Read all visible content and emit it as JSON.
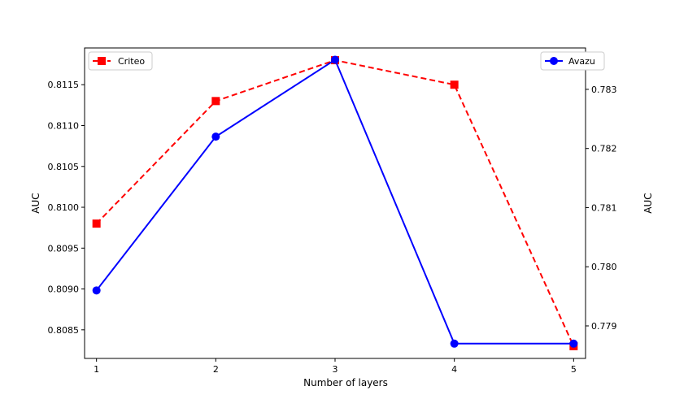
{
  "chart_data": {
    "type": "line",
    "xlabel": "Number of layers",
    "x": [
      1,
      2,
      3,
      4,
      5
    ],
    "x_ticks": [
      "1",
      "2",
      "3",
      "4",
      "5"
    ],
    "left_axis": {
      "label": "AUC",
      "ylim": [
        0.80815,
        0.81195
      ],
      "ticks": [
        0.8085,
        0.809,
        0.8095,
        0.81,
        0.8105,
        0.811,
        0.8115
      ],
      "tick_labels": [
        "0.8085",
        "0.8090",
        "0.8095",
        "0.8100",
        "0.8105",
        "0.8110",
        "0.8115"
      ]
    },
    "right_axis": {
      "label": "AUC",
      "ylim": [
        0.77845,
        0.7837
      ],
      "ticks": [
        0.779,
        0.78,
        0.781,
        0.782,
        0.783
      ],
      "tick_labels": [
        "0.779",
        "0.780",
        "0.781",
        "0.782",
        "0.783"
      ]
    },
    "series": [
      {
        "name": "Criteo",
        "axis": "left",
        "values": [
          0.8098,
          0.8113,
          0.8118,
          0.8115,
          0.8083
        ],
        "color": "#ff0000",
        "line_style": "dashed",
        "marker": "square",
        "legend_position": "top-left"
      },
      {
        "name": "Avazu",
        "axis": "right",
        "values": [
          0.7796,
          0.7822,
          0.7835,
          0.7787,
          0.7787
        ],
        "color": "#0000ff",
        "line_style": "solid",
        "marker": "circle",
        "legend_position": "top-right"
      }
    ],
    "grid": false
  }
}
